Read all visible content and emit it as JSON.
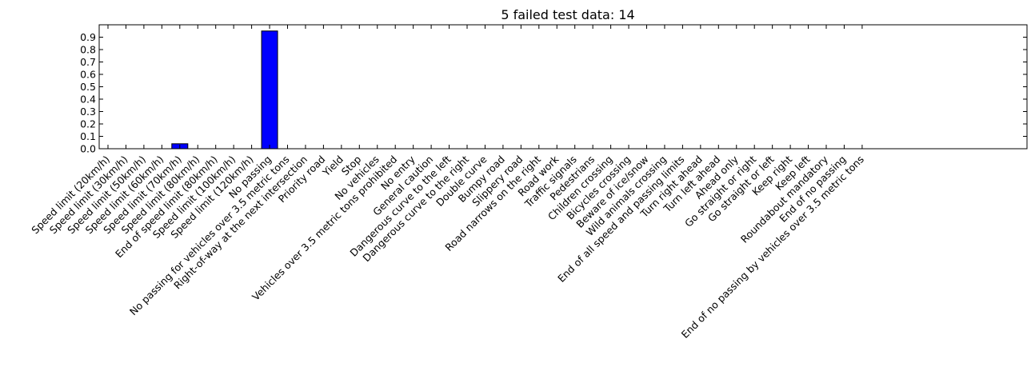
{
  "chart_data": {
    "type": "bar",
    "title": "5 failed test data: 14",
    "xlabel": "",
    "ylabel": "",
    "ylim": [
      0,
      1.0
    ],
    "yticks": [
      0.0,
      0.1,
      0.2,
      0.3,
      0.4,
      0.5,
      0.6,
      0.7,
      0.8,
      0.9
    ],
    "bar_color": "#0000ff",
    "grid": false,
    "categories": [
      "Speed limit (20km/h)",
      "Speed limit (30km/h)",
      "Speed limit (50km/h)",
      "Speed limit (60km/h)",
      "Speed limit (70km/h)",
      "Speed limit (80km/h)",
      "End of speed limit (80km/h)",
      "Speed limit (100km/h)",
      "Speed limit (120km/h)",
      "No passing",
      "No passing for vehicles over 3.5 metric tons",
      "Right-of-way at the next intersection",
      "Priority road",
      "Yield",
      "Stop",
      "No vehicles",
      "Vehicles over 3.5 metric tons prohibited",
      "No entry",
      "General caution",
      "Dangerous curve to the left",
      "Dangerous curve to the right",
      "Double curve",
      "Bumpy road",
      "Slippery road",
      "Road narrows on the right",
      "Road work",
      "Traffic signals",
      "Pedestrians",
      "Children crossing",
      "Bicycles crossing",
      "Beware of ice/snow",
      "Wild animals crossing",
      "End of all speed and passing limits",
      "Turn right ahead",
      "Turn left ahead",
      "Ahead only",
      "Go straight or right",
      "Go straight or left",
      "Keep right",
      "Keep left",
      "Roundabout mandatory",
      "End of no passing",
      "End of no passing by vehicles over 3.5 metric tons"
    ],
    "values": [
      0,
      0,
      0,
      0,
      0.04,
      0,
      0,
      0,
      0,
      0.95,
      0,
      0,
      0,
      0,
      0,
      0,
      0,
      0,
      0,
      0,
      0,
      0,
      0,
      0,
      0,
      0,
      0,
      0,
      0,
      0,
      0,
      0,
      0,
      0,
      0,
      0,
      0,
      0,
      0,
      0,
      0,
      0,
      0
    ]
  }
}
